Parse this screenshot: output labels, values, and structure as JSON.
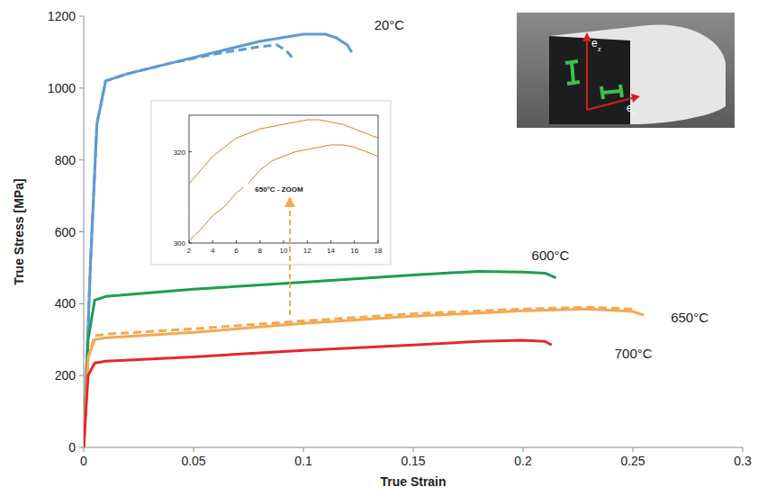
{
  "chart_data": [
    {
      "type": "line",
      "x_label": "True Strain",
      "y_label": "True Stress [MPa]",
      "xlim": [
        0,
        0.3
      ],
      "xticks": [
        0,
        0.05,
        0.1,
        0.15,
        0.2,
        0.25,
        0.3
      ],
      "ylim": [
        0,
        1200
      ],
      "yticks": [
        0,
        200,
        400,
        600,
        800,
        1000,
        1200
      ],
      "grid": false,
      "annotations": [
        {
          "text": "e",
          "subscript": "z"
        },
        {
          "text": "e",
          "subscript": "r"
        }
      ],
      "series": [
        {
          "name": "20°C",
          "color": "#5b9bd5",
          "line_style": "solid",
          "x": [
            0,
            0.003,
            0.006,
            0.01,
            0.02,
            0.04,
            0.06,
            0.08,
            0.1,
            0.11,
            0.115,
            0.12,
            0.122
          ],
          "values": [
            0,
            500,
            900,
            1020,
            1040,
            1070,
            1100,
            1130,
            1150,
            1150,
            1140,
            1120,
            1100
          ]
        },
        {
          "name": "20°C",
          "color": "#5b9bd5",
          "line_style": "dashed",
          "x": [
            0,
            0.003,
            0.006,
            0.01,
            0.02,
            0.04,
            0.06,
            0.08,
            0.088,
            0.092,
            0.095
          ],
          "values": [
            0,
            500,
            900,
            1020,
            1040,
            1070,
            1095,
            1115,
            1120,
            1105,
            1085
          ]
        },
        {
          "name": "600°C",
          "color": "#1d9e4f",
          "line_style": "solid",
          "x": [
            0,
            0.002,
            0.005,
            0.01,
            0.05,
            0.1,
            0.15,
            0.18,
            0.2,
            0.21,
            0.215
          ],
          "values": [
            0,
            300,
            410,
            420,
            440,
            460,
            480,
            490,
            488,
            485,
            472
          ]
        },
        {
          "name": "650°C",
          "color": "#f5a94e",
          "line_style": "solid",
          "x": [
            0,
            0.002,
            0.005,
            0.01,
            0.05,
            0.1,
            0.15,
            0.2,
            0.23,
            0.25,
            0.255
          ],
          "values": [
            0,
            250,
            300,
            305,
            320,
            345,
            365,
            380,
            385,
            378,
            368
          ]
        },
        {
          "name": "650°C",
          "color": "#f5a94e",
          "line_style": "dashed",
          "x": [
            0,
            0.002,
            0.005,
            0.01,
            0.05,
            0.1,
            0.15,
            0.2,
            0.23,
            0.25
          ],
          "values": [
            0,
            250,
            310,
            315,
            330,
            352,
            372,
            385,
            390,
            385
          ]
        },
        {
          "name": "700°C",
          "color": "#e8262a",
          "line_style": "solid",
          "x": [
            0,
            0.002,
            0.005,
            0.01,
            0.05,
            0.1,
            0.15,
            0.18,
            0.2,
            0.21,
            0.213
          ],
          "values": [
            0,
            200,
            235,
            240,
            252,
            270,
            285,
            295,
            298,
            295,
            285
          ]
        }
      ]
    },
    {
      "type": "line",
      "title": "650°C - ZOOM",
      "xlim": [
        2,
        18
      ],
      "xticks": [
        2,
        4,
        6,
        8,
        10,
        12,
        14,
        16,
        18
      ],
      "ylim": [
        300,
        328
      ],
      "yticks": [
        300,
        320
      ],
      "grid": false,
      "series": [
        {
          "name": "650°C",
          "color": "#e8781e",
          "line_style": "solid",
          "x": [
            2,
            3,
            4,
            5,
            6,
            7,
            8,
            9,
            10,
            11,
            12,
            13,
            14,
            15,
            16,
            17,
            18
          ],
          "values": [
            313,
            316,
            319,
            321,
            323,
            324,
            325,
            325.5,
            326,
            326.5,
            327,
            327,
            326.5,
            326,
            325,
            324,
            323
          ]
        },
        {
          "name": "650°C",
          "color": "#e8781e",
          "line_style": "solid",
          "x": [
            2,
            3,
            4,
            5,
            6,
            7,
            8,
            9,
            10,
            11,
            12,
            13,
            14,
            15,
            16,
            17,
            18
          ],
          "values": [
            300.5,
            303,
            306,
            308,
            311,
            313,
            316,
            318,
            319,
            320,
            320.5,
            321,
            321.5,
            321.5,
            321,
            320,
            319
          ]
        }
      ]
    }
  ]
}
